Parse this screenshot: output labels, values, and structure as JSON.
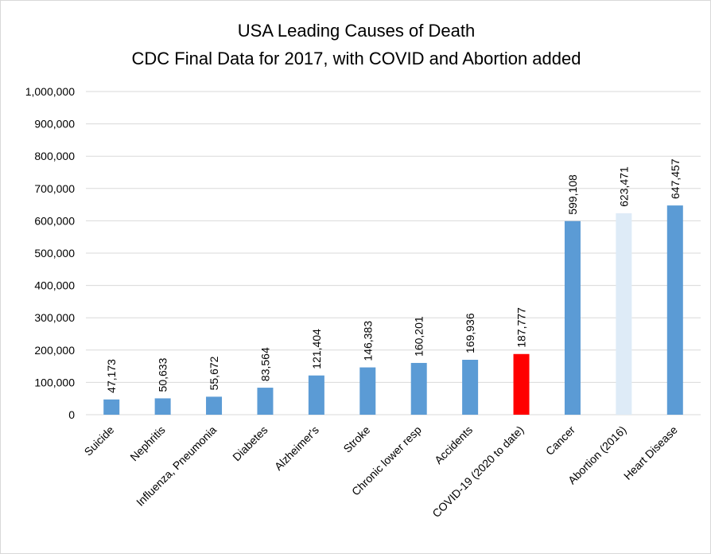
{
  "chart_data": {
    "type": "bar",
    "title_lines": [
      "USA Leading Causes of Death",
      "CDC Final Data for 2017, with COVID and Abortion added"
    ],
    "xlabel": "",
    "ylabel": "",
    "ylim": [
      0,
      1000000
    ],
    "y_ticks": [
      0,
      100000,
      200000,
      300000,
      400000,
      500000,
      600000,
      700000,
      800000,
      900000,
      1000000
    ],
    "y_tick_labels": [
      "0",
      "100,000",
      "200,000",
      "300,000",
      "400,000",
      "500,000",
      "600,000",
      "700,000",
      "800,000",
      "900,000",
      "1,000,000"
    ],
    "grid": true,
    "legend": "none",
    "categories": [
      "Suicide",
      "Nephritis",
      "Influenza, Pneumonia",
      "Diabetes",
      "Alzheimer's",
      "Stroke",
      "Chronic lower resp",
      "Accidents",
      "COVID-19 (2020 to date)",
      "Cancer",
      "Abortion (2016)",
      "Heart Disease"
    ],
    "values": [
      47173,
      50633,
      55672,
      83564,
      121404,
      146383,
      160201,
      169936,
      187777,
      599108,
      623471,
      647457
    ],
    "value_labels": [
      "47,173",
      "50,633",
      "55,672",
      "83,564",
      "121,404",
      "146,383",
      "160,201",
      "169,936",
      "187,777",
      "599,108",
      "623,471",
      "647,457"
    ],
    "bar_colors": [
      "#5b9bd5",
      "#5b9bd5",
      "#5b9bd5",
      "#5b9bd5",
      "#5b9bd5",
      "#5b9bd5",
      "#5b9bd5",
      "#5b9bd5",
      "#ff0000",
      "#5b9bd5",
      "#deebf7",
      "#5b9bd5"
    ]
  }
}
